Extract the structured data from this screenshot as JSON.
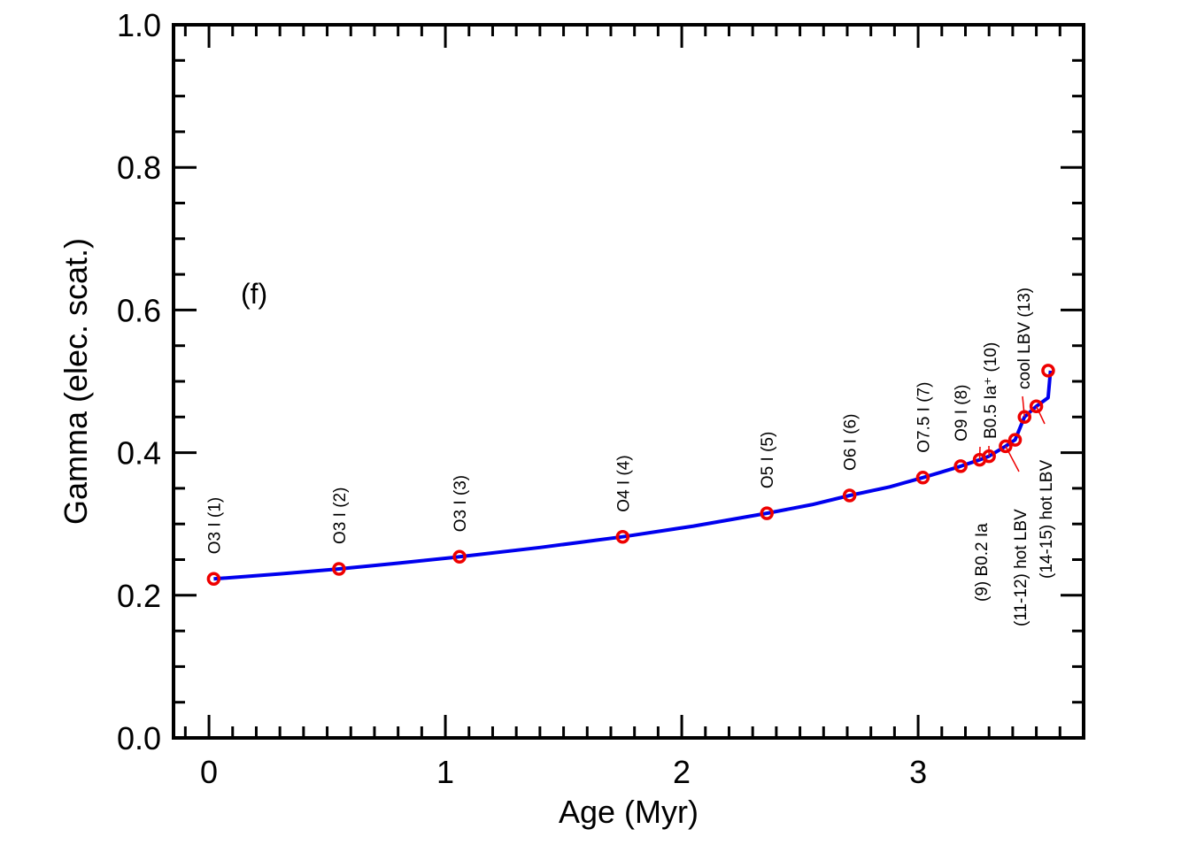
{
  "chart_data": {
    "type": "line",
    "title": "",
    "panel_label": "(f)",
    "xlabel": "Age (Myr)",
    "ylabel": "Gamma (elec. scat.)",
    "xlim": [
      -0.15,
      3.7
    ],
    "ylim": [
      0.0,
      1.0
    ],
    "x_ticks": [
      0,
      1,
      2,
      3
    ],
    "x_tick_labels": [
      "0",
      "1",
      "2",
      "3"
    ],
    "y_ticks": [
      0.0,
      0.2,
      0.4,
      0.6,
      0.8,
      1.0
    ],
    "y_tick_labels": [
      "0.0",
      "0.2",
      "0.4",
      "0.6",
      "0.8",
      "1.0"
    ],
    "grid": false,
    "line_color": "#0000ee",
    "marker_color": "#ee0000",
    "curve": {
      "x": [
        0.02,
        0.3,
        0.55,
        0.8,
        1.06,
        1.4,
        1.75,
        2.05,
        2.36,
        2.55,
        2.71,
        2.88,
        3.02,
        3.1,
        3.18,
        3.26,
        3.3,
        3.37,
        3.41,
        3.45,
        3.5,
        3.55,
        3.56
      ],
      "y": [
        0.223,
        0.23,
        0.237,
        0.245,
        0.254,
        0.267,
        0.282,
        0.297,
        0.315,
        0.327,
        0.34,
        0.352,
        0.365,
        0.373,
        0.381,
        0.39,
        0.395,
        0.409,
        0.418,
        0.45,
        0.465,
        0.477,
        0.515
      ]
    },
    "markers": {
      "x": [
        0.02,
        0.55,
        1.06,
        1.75,
        2.36,
        2.71,
        3.02,
        3.18,
        3.26,
        3.3,
        3.37,
        3.41,
        3.45,
        3.5,
        3.55
      ],
      "y": [
        0.223,
        0.237,
        0.254,
        0.282,
        0.315,
        0.34,
        0.365,
        0.381,
        0.39,
        0.395,
        0.409,
        0.418,
        0.45,
        0.465,
        0.515
      ]
    },
    "stage_labels": [
      {
        "text": "O3 I (1)",
        "x": 0.02,
        "y": 0.223
      },
      {
        "text": "O3 I (2)",
        "x": 0.55,
        "y": 0.237
      },
      {
        "text": "O3 I  (3)",
        "x": 1.06,
        "y": 0.254
      },
      {
        "text": "O4 I  (4)",
        "x": 1.75,
        "y": 0.282
      },
      {
        "text": "O5 I (5)",
        "x": 2.36,
        "y": 0.315
      },
      {
        "text": "O6 I (6)",
        "x": 2.71,
        "y": 0.34
      },
      {
        "text": "O7.5 I (7)",
        "x": 3.02,
        "y": 0.365
      },
      {
        "text": "O9 I (8)",
        "x": 3.18,
        "y": 0.381
      }
    ],
    "angled_labels": [
      {
        "text": "(9)  B0.2 Ia",
        "x": 3.26,
        "y": 0.39
      },
      {
        "text": "(11-12) hot LBV",
        "x": 3.37,
        "y": 0.409
      },
      {
        "text": "B0.5 Ia⁺ (10)",
        "x": 3.3,
        "y": 0.395
      },
      {
        "text": "(14-15) hot LBV",
        "x": 3.5,
        "y": 0.465
      },
      {
        "text": "cool LBV (13)",
        "x": 3.45,
        "y": 0.45
      }
    ]
  }
}
